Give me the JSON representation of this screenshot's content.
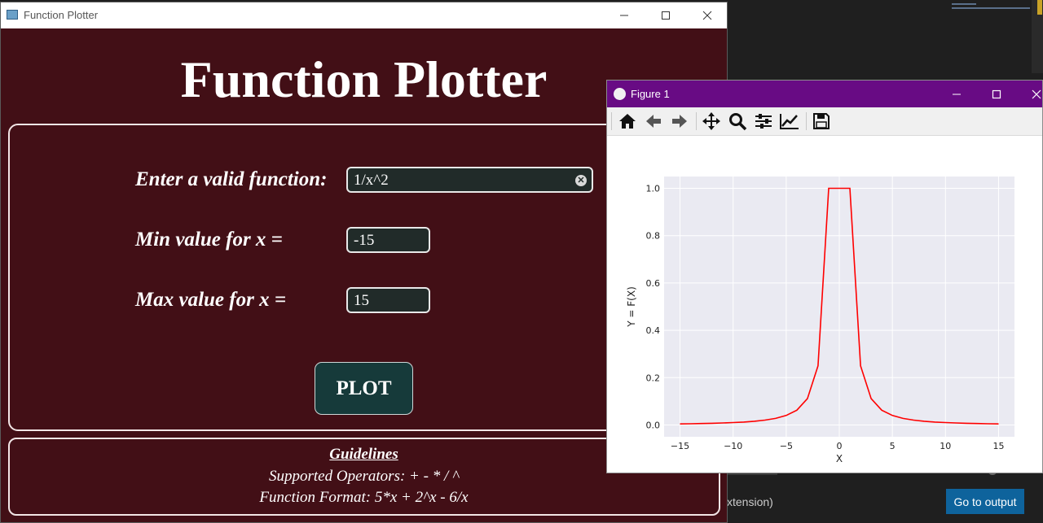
{
  "main_window": {
    "title": "Function Plotter",
    "heading": "Function Plotter",
    "form": {
      "function_label": "Enter a valid function:",
      "function_value": "1/x^2",
      "min_label": "Min value for x =",
      "min_value": "-15",
      "max_label": "Max value for x =",
      "max_value": "15",
      "plot_button": "PLOT"
    },
    "guidelines": {
      "title": "Guidelines",
      "operators": "Supported Operators: + - * / ^",
      "format": "Function Format: 5*x + 2^x - 6/x"
    }
  },
  "figure_window": {
    "title": "Figure 1",
    "toolbar": [
      "home-icon",
      "back-arrow-icon",
      "forward-arrow-icon",
      "pan-icon",
      "zoom-icon",
      "configure-subplots-icon",
      "edit-axes-icon",
      "save-icon"
    ],
    "plot_style": {
      "background": "#eaeaf2",
      "grid": "#ffffff",
      "line": "#ff0000"
    }
  },
  "editor": {
    "panel_label": "xtension)",
    "output_button": "Go to output"
  },
  "chart_data": {
    "type": "line",
    "title": "",
    "xlabel": "X",
    "ylabel": "Y = F(X)",
    "xlim": [
      -16.5,
      16.5
    ],
    "ylim": [
      -0.05,
      1.05
    ],
    "xticks": [
      -15,
      -10,
      -5,
      0,
      5,
      10,
      15
    ],
    "yticks": [
      0.0,
      0.2,
      0.4,
      0.6,
      0.8,
      1.0
    ],
    "grid": true,
    "series": [
      {
        "color": "#ff0000",
        "x": [
          -15,
          -14,
          -13,
          -12,
          -11,
          -10,
          -9,
          -8,
          -7,
          -6,
          -5,
          -4,
          -3,
          -2,
          -1,
          1,
          2,
          3,
          4,
          5,
          6,
          7,
          8,
          9,
          10,
          11,
          12,
          13,
          14,
          15
        ],
        "y": [
          0.0044,
          0.0051,
          0.0059,
          0.0069,
          0.0083,
          0.01,
          0.0123,
          0.0156,
          0.0204,
          0.0278,
          0.04,
          0.0625,
          0.1111,
          0.25,
          1.0,
          1.0,
          0.25,
          0.1111,
          0.0625,
          0.04,
          0.0278,
          0.0204,
          0.0156,
          0.0123,
          0.01,
          0.0083,
          0.0069,
          0.0059,
          0.0051,
          0.0044
        ]
      }
    ]
  }
}
